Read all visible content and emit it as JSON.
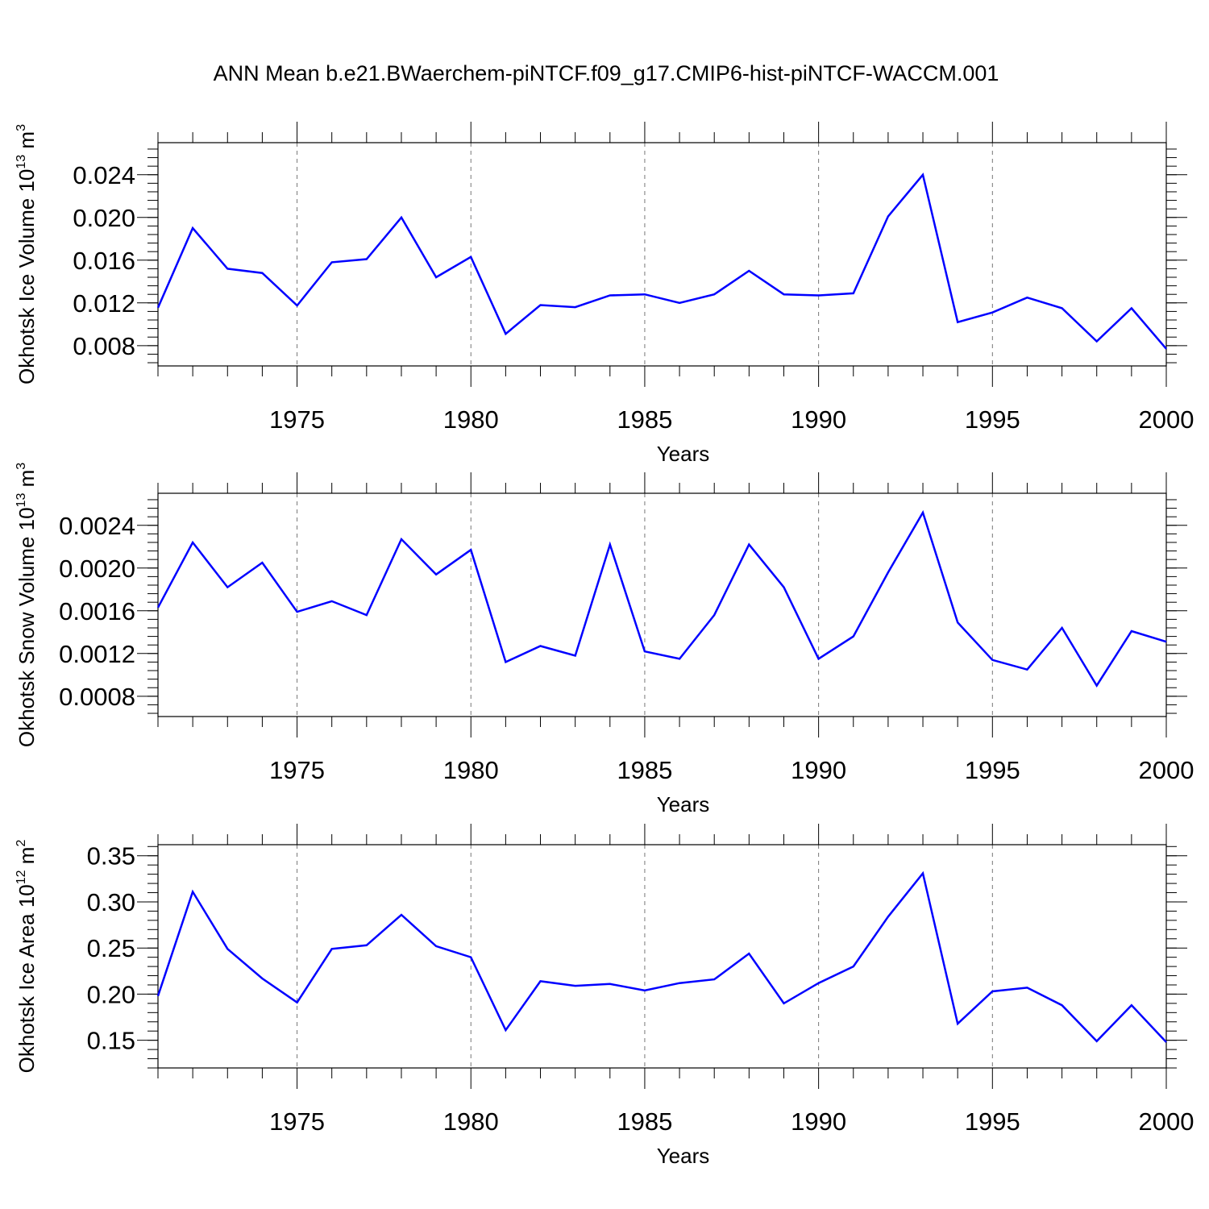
{
  "title": "ANN Mean b.e21.BWaerchem-piNTCF.f09_g17.CMIP6-hist-piNTCF-WACCM.001",
  "line_color": "#0000ff",
  "chart_data": [
    {
      "type": "line",
      "ylabel": {
        "text": "Okhotsk Ice Volume 10",
        "exp": "13",
        "unit": "m",
        "unit_exp": "3"
      },
      "xlabel": "Years",
      "xlim": [
        1971,
        2000
      ],
      "ylim": [
        0.0061,
        0.027
      ],
      "x_ticks": [
        1975,
        1980,
        1985,
        1990,
        1995,
        2000
      ],
      "x_tick_labels": [
        "1975",
        "1980",
        "1985",
        "1990",
        "1995",
        "2000"
      ],
      "y_ticks": [
        0.008,
        0.012,
        0.016,
        0.02,
        0.024
      ],
      "y_tick_labels": [
        "0.008",
        "0.012",
        "0.016",
        "0.020",
        "0.024"
      ],
      "y_minor_step": 0.0008,
      "grid": "dashed vertical at major x ticks",
      "x": [
        1971,
        1972,
        1973,
        1974,
        1975,
        1976,
        1977,
        1978,
        1979,
        1980,
        1981,
        1982,
        1983,
        1984,
        1985,
        1986,
        1987,
        1988,
        1989,
        1990,
        1991,
        1992,
        1993,
        1994,
        1995,
        1996,
        1997,
        1998,
        1999,
        2000
      ],
      "y": [
        0.01155,
        0.019,
        0.0152,
        0.0148,
        0.01175,
        0.0158,
        0.0161,
        0.02,
        0.0144,
        0.0163,
        0.0091,
        0.0118,
        0.0116,
        0.0127,
        0.0128,
        0.012,
        0.0128,
        0.015,
        0.0128,
        0.0127,
        0.0129,
        0.0201,
        0.024,
        0.0102,
        0.0111,
        0.0125,
        0.0115,
        0.0084,
        0.0115,
        0.0077
      ]
    },
    {
      "type": "line",
      "ylabel": {
        "text": "Okhotsk Snow Volume 10",
        "exp": "13",
        "unit": "m",
        "unit_exp": "3"
      },
      "xlabel": "Years",
      "xlim": [
        1971,
        2000
      ],
      "ylim": [
        0.00061,
        0.0027
      ],
      "x_ticks": [
        1975,
        1980,
        1985,
        1990,
        1995,
        2000
      ],
      "x_tick_labels": [
        "1975",
        "1980",
        "1985",
        "1990",
        "1995",
        "2000"
      ],
      "y_ticks": [
        0.0008,
        0.0012,
        0.0016,
        0.002,
        0.0024
      ],
      "y_tick_labels": [
        "0.0008",
        "0.0012",
        "0.0016",
        "0.0020",
        "0.0024"
      ],
      "y_minor_step": 8e-05,
      "grid": "dashed vertical at major x ticks",
      "x": [
        1971,
        1972,
        1973,
        1974,
        1975,
        1976,
        1977,
        1978,
        1979,
        1980,
        1981,
        1982,
        1983,
        1984,
        1985,
        1986,
        1987,
        1988,
        1989,
        1990,
        1991,
        1992,
        1993,
        1994,
        1995,
        1996,
        1997,
        1998,
        1999,
        2000
      ],
      "y": [
        0.00163,
        0.00224,
        0.00182,
        0.00205,
        0.00159,
        0.00169,
        0.00156,
        0.00227,
        0.00194,
        0.00217,
        0.00112,
        0.00127,
        0.00118,
        0.00222,
        0.00122,
        0.00115,
        0.00156,
        0.00222,
        0.00182,
        0.00115,
        0.00136,
        0.00196,
        0.00252,
        0.00149,
        0.00114,
        0.00105,
        0.00144,
        0.0009,
        0.00141,
        0.00131
      ]
    },
    {
      "type": "line",
      "ylabel": {
        "text": "Okhotsk Ice Area 10",
        "exp": "12",
        "unit": "m",
        "unit_exp": "2"
      },
      "xlabel": "Years",
      "xlim": [
        1971,
        2000
      ],
      "ylim": [
        0.12,
        0.362
      ],
      "x_ticks": [
        1975,
        1980,
        1985,
        1990,
        1995,
        2000
      ],
      "x_tick_labels": [
        "1975",
        "1980",
        "1985",
        "1990",
        "1995",
        "2000"
      ],
      "y_ticks": [
        0.15,
        0.2,
        0.25,
        0.3,
        0.35
      ],
      "y_tick_labels": [
        "0.15",
        "0.20",
        "0.25",
        "0.30",
        "0.35"
      ],
      "y_minor_step": 0.01,
      "grid": "dashed vertical at major x ticks",
      "x": [
        1971,
        1972,
        1973,
        1974,
        1975,
        1976,
        1977,
        1978,
        1979,
        1980,
        1981,
        1982,
        1983,
        1984,
        1985,
        1986,
        1987,
        1988,
        1989,
        1990,
        1991,
        1992,
        1993,
        1994,
        1995,
        1996,
        1997,
        1998,
        1999,
        2000
      ],
      "y": [
        0.198,
        0.311,
        0.249,
        0.217,
        0.191,
        0.249,
        0.253,
        0.286,
        0.252,
        0.24,
        0.161,
        0.214,
        0.209,
        0.211,
        0.204,
        0.212,
        0.216,
        0.244,
        0.19,
        0.212,
        0.23,
        0.284,
        0.331,
        0.168,
        0.203,
        0.207,
        0.188,
        0.149,
        0.188,
        0.148
      ]
    }
  ]
}
